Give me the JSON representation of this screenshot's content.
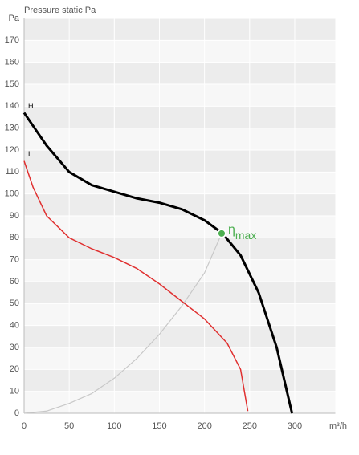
{
  "chart_data": {
    "type": "line",
    "title": "Pressure static Pa",
    "x_label": "m³/h",
    "xlim": [
      0,
      345
    ],
    "xticks": [
      0,
      50,
      100,
      150,
      200,
      250,
      300
    ],
    "ylim": [
      0,
      180
    ],
    "yticks": [
      0,
      10,
      20,
      30,
      40,
      50,
      60,
      70,
      80,
      90,
      100,
      110,
      120,
      130,
      140,
      150,
      160,
      170,
      {
        "value": 180,
        "label": "Pa"
      }
    ],
    "grid": true,
    "series": [
      {
        "name": "H",
        "color": "#000000",
        "x": [
          0,
          10,
          25,
          50,
          75,
          100,
          125,
          150,
          175,
          200,
          220,
          240,
          260,
          280,
          297
        ],
        "values": [
          137,
          131,
          122,
          110,
          104,
          101,
          98,
          96,
          93,
          88,
          82,
          72,
          55,
          30,
          0
        ]
      },
      {
        "name": "L",
        "color": "#e03030",
        "x": [
          0,
          10,
          25,
          50,
          75,
          100,
          125,
          150,
          175,
          200,
          225,
          240,
          248
        ],
        "values": [
          115,
          103,
          90,
          80,
          75,
          71,
          66,
          59,
          51,
          43,
          32,
          20,
          1
        ]
      }
    ],
    "system_curve": {
      "color": "#c8c8c8",
      "x": [
        0,
        25,
        50,
        75,
        100,
        125,
        150,
        175,
        200,
        219
      ],
      "values": [
        0,
        1,
        4.5,
        9,
        16,
        25,
        36,
        49,
        64,
        82
      ]
    },
    "optimum": {
      "symbol": "η",
      "subscript": "max",
      "color": "#4caf50",
      "x": 219,
      "y": 82
    }
  }
}
